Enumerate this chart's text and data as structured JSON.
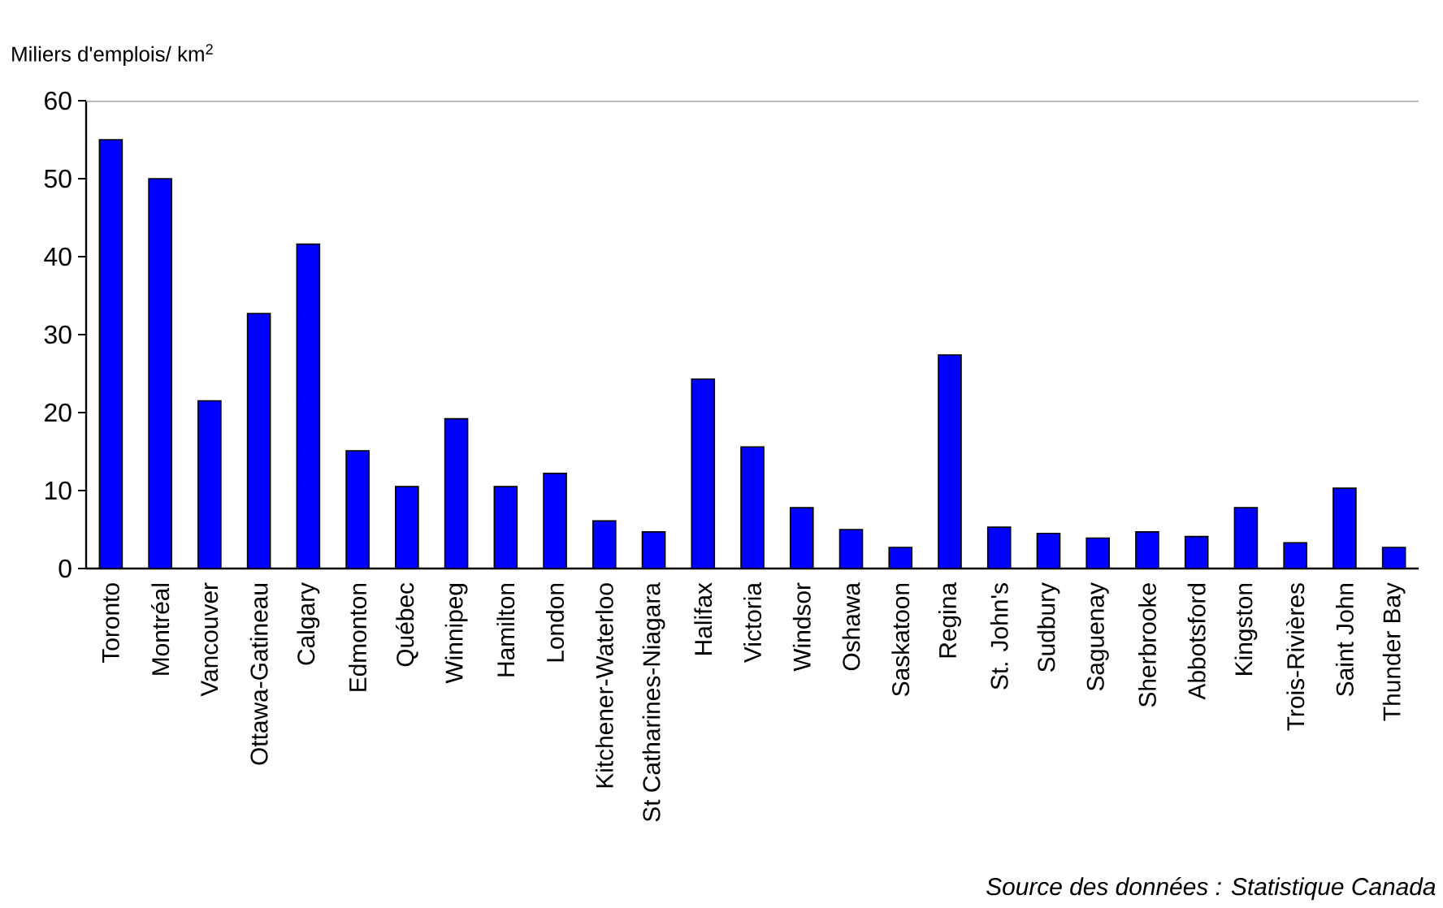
{
  "chart_data": {
    "type": "bar",
    "ylabel": "Miliers d'emplois/ km$^{2}$",
    "categories": [
      "Toronto",
      "Montréal",
      "Vancouver",
      "Ottawa-Gatineau",
      "Calgary",
      "Edmonton",
      "Québec",
      "Winnipeg",
      "Hamilton",
      "London",
      "Kitchener-Waterloo",
      "St Catharines-Niagara",
      "Halifax",
      "Victoria",
      "Windsor",
      "Oshawa",
      "Saskatoon",
      "Regina",
      "St. John's",
      "Sudbury",
      "Saguenay",
      "Sherbrooke",
      "Abbotsford",
      "Kingston",
      "Trois-Rivières",
      "Saint John",
      "Thunder Bay"
    ],
    "values": [
      55,
      50,
      21.5,
      32.7,
      41.6,
      15.1,
      10.5,
      19.2,
      10.5,
      12.2,
      6.1,
      4.7,
      24.3,
      15.6,
      7.8,
      5.0,
      2.7,
      27.4,
      5.3,
      4.5,
      3.9,
      4.7,
      4.1,
      7.8,
      3.3,
      10.3,
      2.7
    ],
    "color": "#0000ff",
    "ylim": [
      0,
      60
    ],
    "yticks": [
      0,
      10,
      20,
      30,
      40,
      50,
      60
    ],
    "annotations": [
      "Source des données : Statistique Canada"
    ]
  }
}
